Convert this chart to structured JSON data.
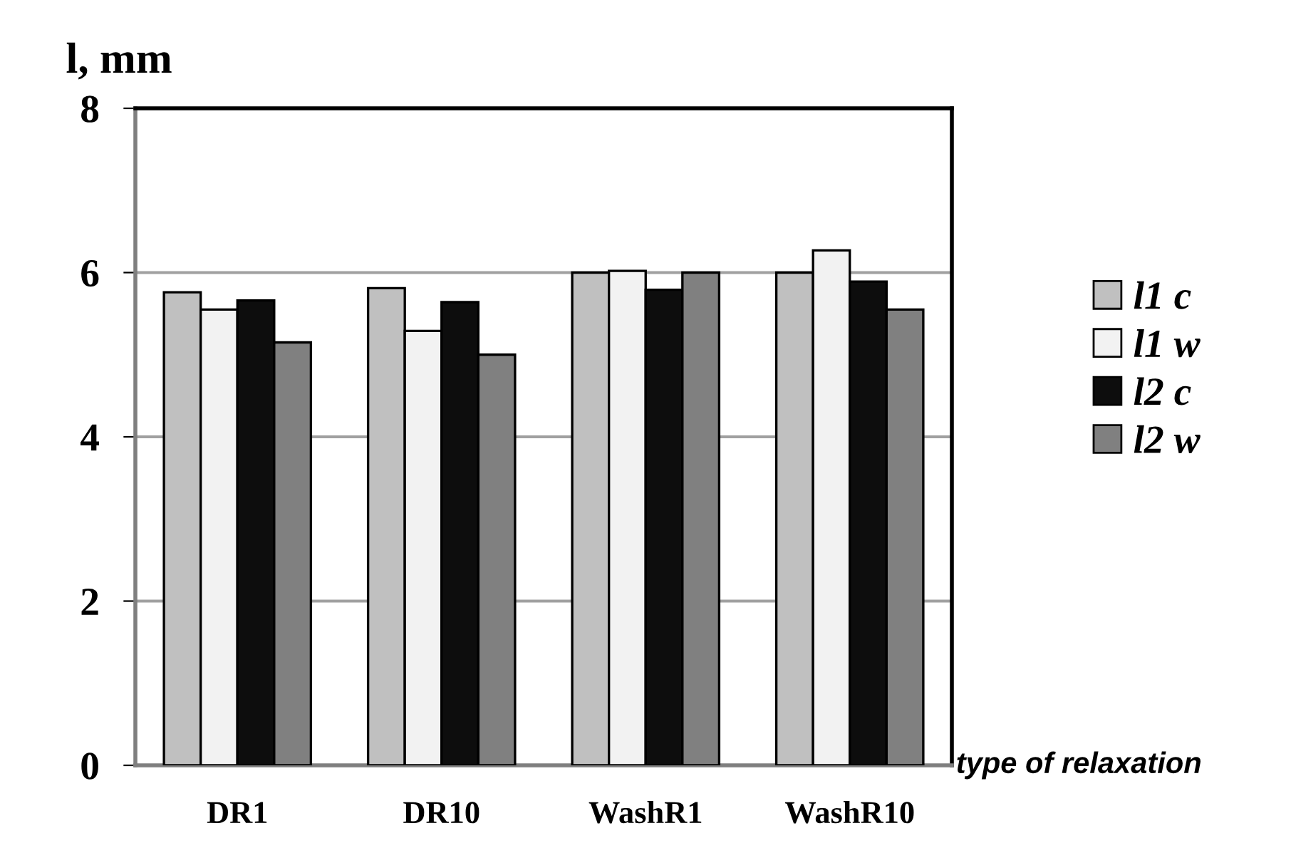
{
  "chart_data": {
    "type": "bar",
    "ylabel": "l, mm",
    "xlabel": "type of relaxation",
    "categories": [
      "DR1",
      "DR10",
      "WashR1",
      "WashR10"
    ],
    "series": [
      {
        "name": "l1 c",
        "color": "#c0c0c0",
        "values": [
          5.76,
          5.81,
          6.0,
          6.0
        ]
      },
      {
        "name": "l1 w",
        "color": "#f2f2f2",
        "values": [
          5.55,
          5.29,
          6.02,
          6.27
        ]
      },
      {
        "name": "l2 c",
        "color": "#0d0d0d",
        "values": [
          5.66,
          5.64,
          5.79,
          5.89
        ]
      },
      {
        "name": "l2 w",
        "color": "#808080",
        "values": [
          5.15,
          5.0,
          6.0,
          5.55
        ]
      }
    ],
    "ylim": [
      0,
      8
    ],
    "yticks": [
      0,
      2,
      4,
      6,
      8
    ],
    "grid": "y",
    "legend": "right"
  }
}
